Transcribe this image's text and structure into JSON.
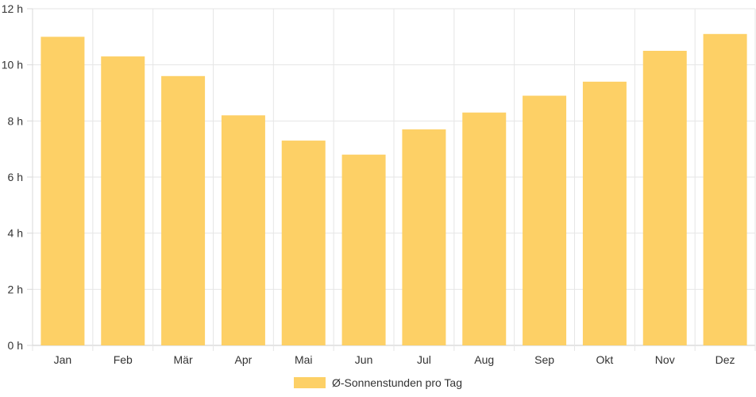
{
  "chart_data": {
    "type": "bar",
    "categories": [
      "Jan",
      "Feb",
      "Mär",
      "Apr",
      "Mai",
      "Jun",
      "Jul",
      "Aug",
      "Sep",
      "Okt",
      "Nov",
      "Dez"
    ],
    "series": [
      {
        "name": "Ø-Sonnenstunden pro Tag",
        "values": [
          11.0,
          10.3,
          9.6,
          8.2,
          7.3,
          6.8,
          7.7,
          8.3,
          8.9,
          9.4,
          10.5,
          11.1
        ]
      }
    ],
    "y_ticks": [
      "0 h",
      "2 h",
      "4 h",
      "6 h",
      "8 h",
      "10 h",
      "12 h"
    ],
    "ylim": [
      0,
      12
    ],
    "grid": true,
    "legend_position": "bottom",
    "bar_color": "#fdd066"
  }
}
